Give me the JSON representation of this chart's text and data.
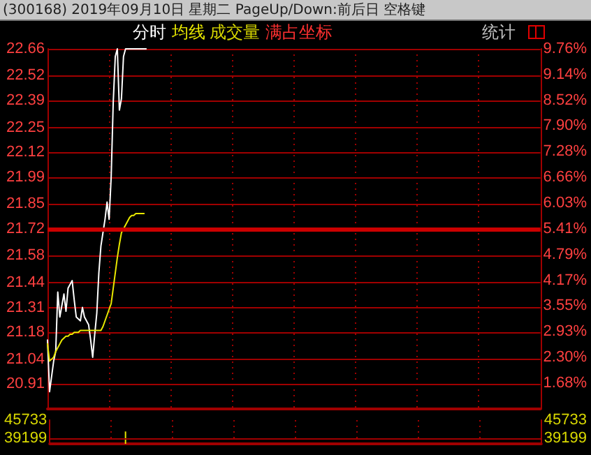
{
  "chart_data": [
    {
      "type": "line",
      "title": "(300168) 2019年09月10日 星期二 PageUp/Down:前后日 空格键",
      "annotations": [
        "分时",
        "成交量",
        "满占坐标",
        "统计"
      ],
      "categories": [
        null,
        null,
        null,
        null,
        null,
        null,
        null,
        null,
        null,
        null,
        null,
        null,
        null,
        null,
        null,
        null,
        null,
        null,
        null,
        null,
        null,
        null,
        null,
        null,
        null,
        null,
        null,
        null,
        null,
        null,
        null,
        null,
        null,
        null,
        null,
        null,
        null,
        null,
        null,
        null,
        null,
        null,
        null,
        null,
        null,
        null,
        null,
        null,
        null,
        null,
        null,
        null,
        null,
        null,
        null,
        null,
        null,
        null,
        null,
        null,
        null,
        null,
        null,
        null,
        null,
        null,
        null,
        null,
        null,
        null,
        null,
        null,
        null,
        null,
        null,
        null,
        null,
        null,
        null,
        null,
        null,
        null,
        null,
        null,
        null,
        null,
        null,
        null,
        null,
        null,
        null,
        null,
        null,
        null,
        null,
        null,
        null,
        null,
        null,
        null,
        null,
        null,
        null,
        null,
        null,
        null,
        null,
        null,
        null,
        null,
        null,
        null,
        null,
        null,
        null,
        null,
        null,
        null,
        null,
        null,
        null,
        null,
        null,
        null,
        null,
        null,
        null,
        null,
        null,
        null,
        null,
        null,
        null,
        null,
        null,
        null,
        null,
        null,
        null,
        null,
        null,
        null,
        null,
        null,
        null,
        null,
        null,
        null,
        null,
        null,
        null,
        null,
        null,
        null,
        null,
        null,
        null,
        null,
        null,
        null,
        null,
        null,
        null,
        null,
        null,
        null,
        null,
        null,
        null,
        null,
        null,
        null,
        null,
        null,
        null,
        null,
        null,
        null,
        null,
        null,
        null,
        null,
        null,
        null,
        null,
        null,
        null,
        null,
        null,
        null,
        null,
        null,
        null,
        null,
        null,
        null,
        null,
        null,
        null,
        null,
        null,
        null,
        null,
        null,
        null,
        null,
        null,
        null,
        null,
        null,
        null,
        null,
        null,
        null,
        null,
        null,
        null,
        null,
        null,
        null,
        null,
        null,
        null,
        null,
        null,
        null,
        null,
        null,
        null,
        null,
        null,
        null,
        null,
        null,
        null,
        null,
        null,
        null,
        null,
        null,
        null
      ],
      "ylim": [
        20.78,
        22.66
      ],
      "yticks": [
        22.66,
        22.52,
        22.39,
        22.25,
        22.12,
        21.99,
        21.85,
        21.72,
        21.58,
        21.44,
        21.31,
        21.18,
        21.04,
        20.91
      ],
      "y2lim": [
        1.06,
        9.76
      ],
      "y2ticks": [
        {
          "value": 9.76,
          "label": "9.76%"
        },
        {
          "value": 9.14,
          "label": "9.14%"
        },
        {
          "value": 8.52,
          "label": "8.52%"
        },
        {
          "value": 7.9,
          "label": "7.90%"
        },
        {
          "value": 7.28,
          "label": "7.28%"
        },
        {
          "value": 6.66,
          "label": "6.66%"
        },
        {
          "value": 6.03,
          "label": "6.03%"
        },
        {
          "value": 5.41,
          "label": "5.41%"
        },
        {
          "value": 4.79,
          "label": "4.79%"
        },
        {
          "value": 4.17,
          "label": "4.17%"
        },
        {
          "value": 3.55,
          "label": "3.55%"
        },
        {
          "value": 2.93,
          "label": "2.93%"
        },
        {
          "value": 2.3,
          "label": "2.30%"
        },
        {
          "value": 1.68,
          "label": "1.68%"
        }
      ],
      "grid": true,
      "marker": "none",
      "line_style": "solid",
      "ref_lines": [
        {
          "axis": "y",
          "value": 21.72,
          "color": "#cc0000"
        }
      ],
      "series": [
        {
          "color": "#ffffff",
          "values": [
            21.14,
            20.87,
            20.95,
            21.03,
            21.08,
            21.39,
            21.26,
            21.32,
            21.38,
            21.29,
            21.41,
            21.43,
            21.45,
            21.35,
            21.26,
            21.25,
            21.24,
            21.31,
            21.26,
            21.24,
            21.22,
            21.14,
            21.05,
            21.17,
            21.28,
            21.49,
            21.63,
            21.7,
            21.77,
            21.86,
            21.77,
            21.99,
            22.38,
            22.62,
            22.66,
            22.34,
            22.4,
            22.62,
            22.66,
            22.66,
            22.66,
            22.66,
            22.66,
            22.66,
            22.66,
            22.66,
            22.66,
            22.66,
            22.66,
            null,
            null,
            null,
            null,
            null,
            null,
            null,
            null,
            null,
            null,
            null,
            null,
            null,
            null,
            null,
            null,
            null,
            null,
            null,
            null,
            null,
            null,
            null,
            null,
            null,
            null,
            null,
            null,
            null,
            null,
            null,
            null,
            null,
            null,
            null,
            null,
            null,
            null,
            null,
            null,
            null,
            null,
            null,
            null,
            null,
            null,
            null,
            null,
            null,
            null,
            null,
            null,
            null,
            null,
            null,
            null,
            null,
            null,
            null,
            null,
            null,
            null,
            null,
            null,
            null,
            null,
            null,
            null,
            null,
            null,
            null,
            null,
            null,
            null,
            null,
            null,
            null,
            null,
            null,
            null,
            null,
            null,
            null,
            null,
            null,
            null,
            null,
            null,
            null,
            null,
            null,
            null,
            null,
            null,
            null,
            null,
            null,
            null,
            null,
            null,
            null,
            null,
            null,
            null,
            null,
            null,
            null,
            null,
            null,
            null,
            null,
            null,
            null,
            null,
            null,
            null,
            null,
            null,
            null,
            null,
            null,
            null,
            null,
            null,
            null,
            null,
            null,
            null,
            null,
            null,
            null,
            null,
            null,
            null,
            null,
            null,
            null,
            null,
            null,
            null,
            null,
            null,
            null,
            null,
            null,
            null,
            null,
            null,
            null,
            null,
            null,
            null,
            null,
            null,
            null,
            null,
            null,
            null,
            null,
            null,
            null,
            null,
            null,
            null,
            null,
            null,
            null,
            null,
            null,
            null,
            null,
            null,
            null,
            null,
            null,
            null,
            null,
            null,
            null,
            null,
            null,
            null,
            null,
            null,
            null,
            null,
            null,
            null,
            null,
            null,
            null,
            null
          ]
        },
        {
          "name": "均线",
          "color": "#e8e800",
          "values": [
            21.12,
            21.03,
            21.04,
            21.05,
            21.08,
            21.1,
            21.12,
            21.14,
            21.15,
            21.16,
            21.16,
            21.17,
            21.17,
            21.18,
            21.18,
            21.18,
            21.19,
            21.19,
            21.19,
            21.19,
            21.19,
            21.19,
            21.19,
            21.19,
            21.19,
            21.19,
            21.19,
            21.21,
            21.24,
            21.27,
            21.3,
            21.33,
            21.41,
            21.49,
            21.57,
            21.64,
            21.7,
            21.72,
            21.74,
            21.76,
            21.78,
            21.79,
            21.79,
            21.8,
            21.8,
            21.8,
            21.8,
            21.8,
            null,
            null,
            null,
            null,
            null,
            null,
            null,
            null,
            null,
            null,
            null,
            null,
            null,
            null,
            null,
            null,
            null,
            null,
            null,
            null,
            null,
            null,
            null,
            null,
            null,
            null,
            null,
            null,
            null,
            null,
            null,
            null,
            null,
            null,
            null,
            null,
            null,
            null,
            null,
            null,
            null,
            null,
            null,
            null,
            null,
            null,
            null,
            null,
            null,
            null,
            null,
            null,
            null,
            null,
            null,
            null,
            null,
            null,
            null,
            null,
            null,
            null,
            null,
            null,
            null,
            null,
            null,
            null,
            null,
            null,
            null,
            null,
            null,
            null,
            null,
            null,
            null,
            null,
            null,
            null,
            null,
            null,
            null,
            null,
            null,
            null,
            null,
            null,
            null,
            null,
            null,
            null,
            null,
            null,
            null,
            null,
            null,
            null,
            null,
            null,
            null,
            null,
            null,
            null,
            null,
            null,
            null,
            null,
            null,
            null,
            null,
            null,
            null,
            null,
            null,
            null,
            null,
            null,
            null,
            null,
            null,
            null,
            null,
            null,
            null,
            null,
            null,
            null,
            null,
            null,
            null,
            null,
            null,
            null,
            null,
            null,
            null,
            null,
            null,
            null,
            null,
            null,
            null,
            null,
            null,
            null,
            null,
            null,
            null,
            null,
            null,
            null,
            null,
            null,
            null,
            null,
            null,
            null,
            null,
            null,
            null,
            null,
            null,
            null,
            null,
            null,
            null,
            null,
            null,
            null,
            null,
            null,
            null,
            null,
            null,
            null,
            null,
            null,
            null,
            null,
            null,
            null,
            null,
            null,
            null,
            null,
            null,
            null,
            null,
            null,
            null,
            null,
            null
          ]
        }
      ]
    },
    {
      "type": "bar",
      "categories": [
        null,
        null,
        null,
        null,
        null,
        null,
        null,
        null,
        null,
        null,
        null,
        null,
        null,
        null,
        null,
        null,
        null,
        null,
        null,
        null,
        null,
        null,
        null,
        null,
        null,
        null,
        null,
        null,
        null,
        null,
        null,
        null,
        null,
        null,
        null,
        null,
        null,
        null,
        null,
        null,
        null,
        null,
        null,
        null,
        null,
        null,
        null,
        null,
        null,
        null,
        null,
        null,
        null,
        null,
        null,
        null,
        null,
        null,
        null,
        null,
        null,
        null,
        null,
        null,
        null,
        null,
        null,
        null,
        null,
        null,
        null,
        null,
        null,
        null,
        null,
        null,
        null,
        null,
        null,
        null,
        null,
        null,
        null,
        null,
        null,
        null,
        null,
        null,
        null,
        null,
        null,
        null,
        null,
        null,
        null,
        null,
        null,
        null,
        null,
        null,
        null,
        null,
        null,
        null,
        null,
        null,
        null,
        null,
        null,
        null,
        null,
        null,
        null,
        null,
        null,
        null,
        null,
        null,
        null,
        null,
        null,
        null,
        null,
        null,
        null,
        null,
        null,
        null,
        null,
        null,
        null,
        null,
        null,
        null,
        null,
        null,
        null,
        null,
        null,
        null,
        null,
        null,
        null,
        null,
        null,
        null,
        null,
        null,
        null,
        null,
        null,
        null,
        null,
        null,
        null,
        null,
        null,
        null,
        null,
        null,
        null,
        null,
        null,
        null,
        null,
        null,
        null,
        null,
        null,
        null,
        null,
        null,
        null,
        null,
        null,
        null,
        null,
        null,
        null,
        null,
        null,
        null,
        null,
        null,
        null,
        null,
        null,
        null,
        null,
        null,
        null,
        null,
        null,
        null,
        null,
        null,
        null,
        null,
        null,
        null,
        null,
        null,
        null,
        null,
        null,
        null,
        null,
        null,
        null,
        null,
        null,
        null,
        null,
        null,
        null,
        null,
        null,
        null,
        null,
        null,
        null,
        null,
        null,
        null,
        null,
        null,
        null,
        null,
        null,
        null,
        null,
        null,
        null,
        null,
        null,
        null,
        null,
        null,
        null,
        null,
        null
      ],
      "ylim": [
        37100,
        45733
      ],
      "yticks": [
        45733,
        39199
      ],
      "y2lim": [
        37100,
        45733
      ],
      "y2ticks": [
        45733,
        39199
      ],
      "grid": "x",
      "ref_lines": [
        {
          "axis": "y",
          "value": 39199,
          "color": "#a00000"
        }
      ],
      "series": [
        {
          "color": "#e8e800",
          "values": [
            null,
            null,
            null,
            null,
            null,
            null,
            null,
            null,
            null,
            null,
            null,
            null,
            null,
            null,
            null,
            null,
            null,
            null,
            null,
            null,
            null,
            null,
            null,
            null,
            null,
            null,
            null,
            null,
            null,
            null,
            null,
            null,
            null,
            null,
            null,
            null,
            null,
            41600,
            null,
            null,
            null,
            null,
            null,
            null,
            null,
            null,
            null,
            null,
            null,
            null,
            null,
            null,
            null,
            null,
            null,
            null,
            null,
            null,
            null,
            null,
            null,
            null,
            null,
            null,
            null,
            null,
            null,
            null,
            null,
            null,
            null,
            null,
            null,
            null,
            null,
            null,
            null,
            null,
            null,
            null,
            null,
            null,
            null,
            null,
            null,
            null,
            null,
            null,
            null,
            null,
            null,
            null,
            null,
            null,
            null,
            null,
            null,
            null,
            null,
            null,
            null,
            null,
            null,
            null,
            null,
            null,
            null,
            null,
            null,
            null,
            null,
            null,
            null,
            null,
            null,
            null,
            null,
            null,
            null,
            null,
            null,
            null,
            null,
            null,
            null,
            null,
            null,
            null,
            null,
            null,
            null,
            null,
            null,
            null,
            null,
            null,
            null,
            null,
            null,
            null,
            null,
            null,
            null,
            null,
            null,
            null,
            null,
            null,
            null,
            null,
            null,
            null,
            null,
            null,
            null,
            null,
            null,
            null,
            null,
            null,
            null,
            null,
            null,
            null,
            null,
            null,
            null,
            null,
            null,
            null,
            null,
            null,
            null,
            null,
            null,
            null,
            null,
            null,
            null,
            null,
            null,
            null,
            null,
            null,
            null,
            null,
            null,
            null,
            null,
            null,
            null,
            null,
            null,
            null,
            null,
            null,
            null,
            null,
            null,
            null,
            null,
            null,
            null,
            null,
            null,
            null,
            null,
            null,
            null,
            null,
            null,
            null,
            null,
            null,
            null,
            null,
            null,
            null,
            null,
            null,
            null,
            null,
            null,
            null,
            null,
            null,
            null,
            null,
            null,
            null,
            null,
            null,
            null,
            null,
            null,
            null,
            null,
            null,
            null,
            null,
            null
          ]
        }
      ]
    }
  ]
}
